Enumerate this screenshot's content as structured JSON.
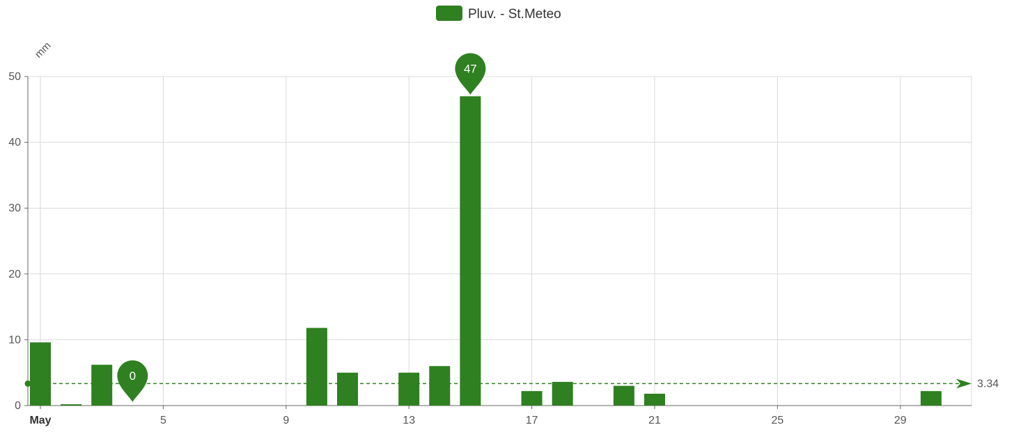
{
  "colors": {
    "series": "#2e8020",
    "grid": "#d9d9d9",
    "axis": "#666666",
    "pin_text": "#ffffff"
  },
  "legend": {
    "label": "Pluv. - St.Meteo",
    "position": "top-center"
  },
  "chart_data": {
    "type": "bar",
    "ylabel": "mm",
    "ylim": [
      0,
      50
    ],
    "yticks": [
      0,
      10,
      20,
      30,
      40,
      50
    ],
    "xlim": [
      1,
      31
    ],
    "xticks": [
      {
        "value": 1,
        "label": "May",
        "bold": true
      },
      {
        "value": 5,
        "label": "5"
      },
      {
        "value": 9,
        "label": "9"
      },
      {
        "value": 13,
        "label": "13"
      },
      {
        "value": 17,
        "label": "17"
      },
      {
        "value": 21,
        "label": "21"
      },
      {
        "value": 25,
        "label": "25"
      },
      {
        "value": 29,
        "label": "29"
      }
    ],
    "grid": true,
    "series": [
      {
        "name": "Pluv. - St.Meteo",
        "x": [
          1,
          2,
          3,
          10,
          11,
          13,
          14,
          15,
          17,
          18,
          20,
          21,
          30
        ],
        "values": [
          9.6,
          0.2,
          6.2,
          11.8,
          5.0,
          5.0,
          6.0,
          47.0,
          2.2,
          3.6,
          3.0,
          1.8,
          2.2
        ]
      }
    ],
    "markers": [
      {
        "type": "max",
        "label": "47",
        "x": 15,
        "value": 47
      },
      {
        "type": "min",
        "label": "0",
        "x": 4,
        "value": 0
      }
    ],
    "average_line": {
      "value": 3.34,
      "label": "3.34"
    }
  }
}
